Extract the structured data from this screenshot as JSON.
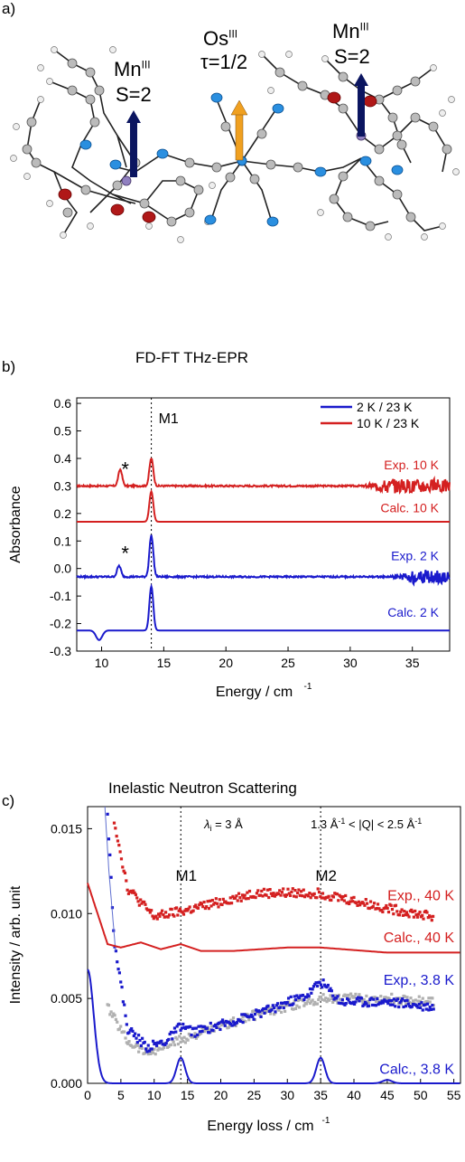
{
  "panel_a": {
    "label": "a)",
    "mn_left_top": "Mn",
    "mn_left_sup": "III",
    "mn_left_spin": "S=2",
    "os_top": "Os",
    "os_sup": "III",
    "os_spin": "τ=1/2",
    "mn_right_top": "Mn",
    "mn_right_sup": "III",
    "mn_right_spin": "S=2",
    "colors": {
      "mn_arrow": "#0b1560",
      "os_arrow": "#f0a020",
      "n_atom": "#2a8fe0",
      "o_atom": "#b01818",
      "c_atom": "#bbbbbb",
      "h_atom": "#eeeeee",
      "mn_atom": "#9080c0"
    }
  },
  "chart_data": [
    {
      "type": "line",
      "panel_label": "b)",
      "title": "FD-FT THz-EPR",
      "xlabel": "Energy / cm",
      "xlabel_sup": "-1",
      "ylabel": "Absorbance",
      "xlim": [
        8,
        38
      ],
      "ylim": [
        -0.3,
        0.62
      ],
      "xticks": [
        10,
        15,
        20,
        25,
        30,
        35
      ],
      "yticks": [
        -0.3,
        -0.2,
        -0.1,
        0.0,
        0.1,
        0.2,
        0.3,
        0.4,
        0.5,
        0.6
      ],
      "ytick_labels": [
        "-0.3",
        "-0.2",
        "-0.1",
        "0.0",
        "0.1",
        "0.2",
        "0.3",
        "0.4",
        "0.5",
        "0.6"
      ],
      "vline": {
        "x": 14.0,
        "label": "M1"
      },
      "legend": [
        {
          "name": "2 K / 23 K",
          "color": "#1a1acc"
        },
        {
          "name": "10 K / 23 K",
          "color": "#d42020"
        }
      ],
      "series": [
        {
          "name": "Exp. 10 K",
          "color": "#d42020",
          "baseline": 0.3,
          "peaks": [
            [
              11.5,
              0.06
            ],
            [
              14.0,
              0.1
            ]
          ],
          "noise_after": 31
        },
        {
          "name": "Calc. 10 K",
          "color": "#d42020",
          "baseline": 0.17,
          "peaks": [
            [
              14.0,
              0.11
            ]
          ]
        },
        {
          "name": "Exp. 2 K",
          "color": "#1a1acc",
          "baseline": -0.03,
          "peaks": [
            [
              11.4,
              0.04
            ],
            [
              14.0,
              0.15
            ]
          ],
          "noise_after": 33
        },
        {
          "name": "Calc. 2 K",
          "color": "#1a1acc",
          "baseline": -0.225,
          "peaks": [
            [
              14.0,
              0.16
            ]
          ],
          "dips": [
            [
              9.8,
              0.035
            ]
          ]
        }
      ],
      "annotations": [
        "*",
        "*"
      ]
    },
    {
      "type": "line",
      "panel_label": "c)",
      "title": "Inelastic Neutron Scattering",
      "xlabel": "Energy loss / cm",
      "xlabel_sup": "-1",
      "ylabel": "Intensity / arb. unit",
      "xlim": [
        0,
        56
      ],
      "ylim": [
        0,
        0.0163
      ],
      "xticks": [
        0,
        5,
        10,
        15,
        20,
        25,
        30,
        35,
        40,
        45,
        50,
        55
      ],
      "yticks": [
        0.0,
        0.005,
        0.01,
        0.015
      ],
      "ytick_labels": [
        "0.000",
        "0.005",
        "0.010",
        "0.015"
      ],
      "vlines": [
        {
          "x": 14.0,
          "label": "M1"
        },
        {
          "x": 35.0,
          "label": "M2"
        }
      ],
      "annotation_lambda": "λ",
      "annotation_lambda_sub": "i",
      "annotation_lambda_val": " = 3 Å",
      "annotation_q": "1.3 Å",
      "annotation_q_sup1": "-1",
      "annotation_q_mid": " < |Q| < 2.5 Å",
      "annotation_q_sup2": "-1",
      "series": [
        {
          "name": "Exp., 40 K",
          "color": "#d42020",
          "kind": "points",
          "x_range": [
            4,
            52
          ],
          "anchors": [
            [
              4,
              0.0155
            ],
            [
              6,
              0.0115
            ],
            [
              10,
              0.0098
            ],
            [
              15,
              0.0102
            ],
            [
              25,
              0.0112
            ],
            [
              35,
              0.0112
            ],
            [
              45,
              0.0103
            ],
            [
              52,
              0.0098
            ]
          ]
        },
        {
          "name": "Calc., 40 K",
          "color": "#d42020",
          "kind": "line",
          "anchors": [
            [
              0,
              0.0118
            ],
            [
              3,
              0.0082
            ],
            [
              5,
              0.008
            ],
            [
              8,
              0.0083
            ],
            [
              11,
              0.0079
            ],
            [
              14,
              0.0082
            ],
            [
              17,
              0.0078
            ],
            [
              22,
              0.0078
            ],
            [
              30,
              0.008
            ],
            [
              35,
              0.008
            ],
            [
              45,
              0.0077
            ],
            [
              56,
              0.0077
            ]
          ]
        },
        {
          "name": "Exp., 3.8 K",
          "color": "#1a1acc",
          "kind": "points",
          "x_range": [
            3,
            52
          ],
          "anchors": [
            [
              3,
              0.016
            ],
            [
              4,
              0.0085
            ],
            [
              6,
              0.0032
            ],
            [
              9,
              0.0021
            ],
            [
              12,
              0.0025
            ],
            [
              14,
              0.0034
            ],
            [
              16,
              0.003
            ],
            [
              25,
              0.004
            ],
            [
              33,
              0.0052
            ],
            [
              35,
              0.006
            ],
            [
              38,
              0.0048
            ],
            [
              45,
              0.0048
            ],
            [
              52,
              0.0045
            ]
          ]
        },
        {
          "name": "Exp., 3.8 K (background)",
          "color": "#b0b0b0",
          "kind": "points",
          "x_range": [
            3,
            52
          ],
          "anchors": [
            [
              3,
              0.0045
            ],
            [
              6,
              0.0025
            ],
            [
              9,
              0.0018
            ],
            [
              15,
              0.0027
            ],
            [
              25,
              0.004
            ],
            [
              35,
              0.005
            ],
            [
              45,
              0.005
            ],
            [
              52,
              0.0048
            ]
          ]
        },
        {
          "name": "Calc., 3.8 K",
          "color": "#1a1acc",
          "kind": "line",
          "baseline": 0.0,
          "peaks": [
            [
              0,
              0.0067,
              1.3
            ],
            [
              14.0,
              0.0015,
              0.9
            ],
            [
              35.0,
              0.0015,
              0.9
            ],
            [
              45.0,
              0.0002,
              1.0
            ]
          ]
        }
      ],
      "labels": [
        "Exp., 40 K",
        "Calc., 40 K",
        "Exp., 3.8 K",
        "Calc., 3.8 K"
      ]
    }
  ]
}
